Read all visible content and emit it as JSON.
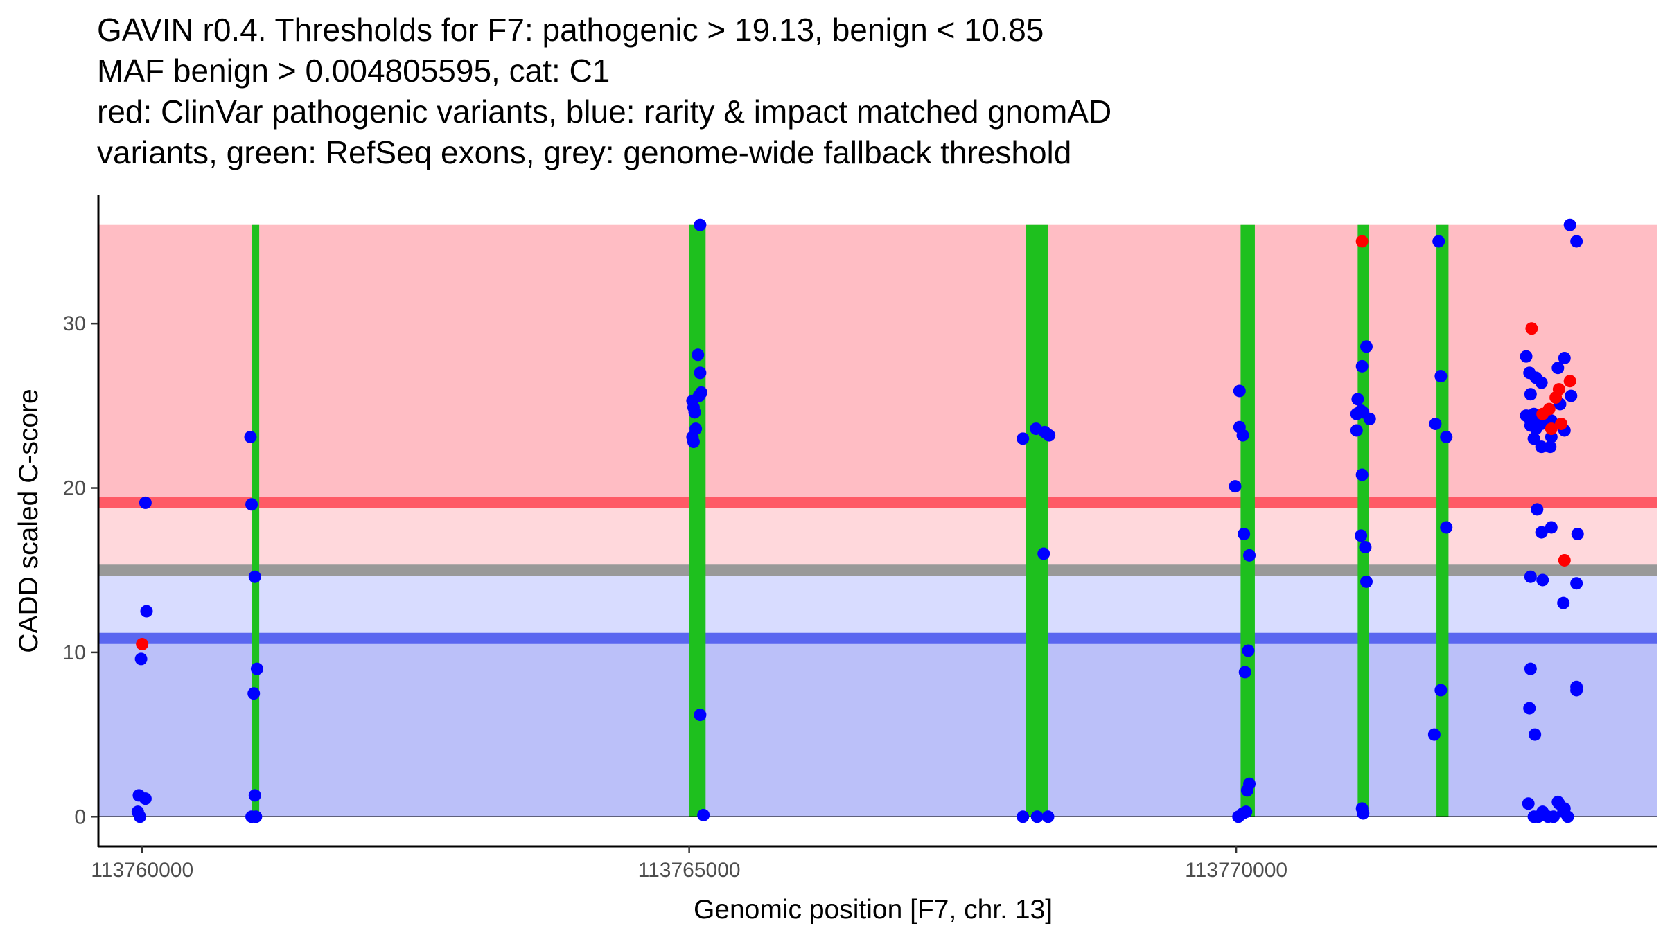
{
  "title_lines": [
    "GAVIN r0.4. Thresholds for F7: pathogenic > 19.13, benign < 10.85",
    "MAF benign > 0.004805595, cat: C1",
    "red: ClinVar pathogenic variants, blue: rarity & impact matched gnomAD",
    "variants, green: RefSeq exons, grey: genome-wide fallback threshold"
  ],
  "chart_data": {
    "type": "scatter",
    "xlabel": "Genomic position [F7, chr. 13]",
    "ylabel": "CADD scaled C-score",
    "xlim": [
      113759600,
      113773850
    ],
    "ylim": [
      -1.8,
      37.8
    ],
    "x_ticks": [
      113760000,
      113765000,
      113770000
    ],
    "x_tick_labels": [
      "113760000",
      "113765000",
      "113770000"
    ],
    "y_ticks": [
      0,
      10,
      20,
      30
    ],
    "y_tick_labels": [
      "0",
      "10",
      "20",
      "30"
    ],
    "thresholds": {
      "pathogenic": 19.13,
      "benign": 10.85,
      "fallback_low": 14.7,
      "fallback_high": 15.3,
      "max": 36,
      "min": 0
    },
    "regions": [
      {
        "name": "pathogenic-region",
        "y0": 19.13,
        "y1": 36,
        "color": "#ffbdc4"
      },
      {
        "name": "fallback-pathogenic-region",
        "y0": 15.3,
        "y1": 19.13,
        "color": "#ffd8dc"
      },
      {
        "name": "fallback-benign-region",
        "y0": 10.85,
        "y1": 14.7,
        "color": "#d8dcff"
      },
      {
        "name": "benign-region",
        "y0": 0,
        "y1": 10.85,
        "color": "#bbc0f9"
      }
    ],
    "threshold_lines": [
      {
        "name": "pathogenic-threshold-line",
        "y": 19.13,
        "color": "#ff5a66"
      },
      {
        "name": "fallback-threshold-line",
        "y": 15.0,
        "color": "#999999"
      },
      {
        "name": "benign-threshold-line",
        "y": 10.85,
        "color": "#5a66f0"
      }
    ],
    "exons": [
      {
        "start": 113761000,
        "end": 113761070
      },
      {
        "start": 113765000,
        "end": 113765150
      },
      {
        "start": 113768080,
        "end": 113768280
      },
      {
        "start": 113770040,
        "end": 113770170
      },
      {
        "start": 113771110,
        "end": 113771210
      },
      {
        "start": 113771830,
        "end": 113771940
      }
    ],
    "series": [
      {
        "name": "gnomAD",
        "color": "#0000ff",
        "points": [
          [
            113760030,
            19.1
          ],
          [
            113760040,
            12.5
          ],
          [
            113759990,
            9.6
          ],
          [
            113759970,
            1.3
          ],
          [
            113760030,
            1.1
          ],
          [
            113759960,
            0.3
          ],
          [
            113759980,
            0.0
          ],
          [
            113760990,
            23.1
          ],
          [
            113761000,
            19.0
          ],
          [
            113761030,
            14.6
          ],
          [
            113761050,
            9.0
          ],
          [
            113761020,
            7.5
          ],
          [
            113761030,
            1.3
          ],
          [
            113761000,
            0.0
          ],
          [
            113761040,
            0.0
          ],
          [
            113765100,
            36.0
          ],
          [
            113765080,
            28.1
          ],
          [
            113765100,
            27.0
          ],
          [
            113765030,
            25.3
          ],
          [
            113765110,
            25.8
          ],
          [
            113765090,
            25.6
          ],
          [
            113765050,
            24.6
          ],
          [
            113765040,
            24.9
          ],
          [
            113765060,
            23.6
          ],
          [
            113765030,
            23.1
          ],
          [
            113765040,
            22.8
          ],
          [
            113765100,
            6.2
          ],
          [
            113765130,
            0.1
          ],
          [
            113768050,
            23.0
          ],
          [
            113768170,
            23.6
          ],
          [
            113768250,
            23.4
          ],
          [
            113768290,
            23.2
          ],
          [
            113768240,
            16.0
          ],
          [
            113768050,
            0.0
          ],
          [
            113768180,
            0.0
          ],
          [
            113768280,
            0.0
          ],
          [
            113770030,
            25.9
          ],
          [
            113770030,
            23.7
          ],
          [
            113770060,
            23.2
          ],
          [
            113769990,
            20.1
          ],
          [
            113770070,
            17.2
          ],
          [
            113770120,
            15.9
          ],
          [
            113770110,
            10.1
          ],
          [
            113770080,
            8.8
          ],
          [
            113770120,
            2.0
          ],
          [
            113770100,
            1.6
          ],
          [
            113770090,
            0.3
          ],
          [
            113770020,
            0.0
          ],
          [
            113770060,
            0.2
          ],
          [
            113771150,
            27.4
          ],
          [
            113771190,
            28.6
          ],
          [
            113771110,
            25.4
          ],
          [
            113771100,
            24.5
          ],
          [
            113771140,
            24.7
          ],
          [
            113771160,
            24.6
          ],
          [
            113771220,
            24.2
          ],
          [
            113771100,
            23.5
          ],
          [
            113771150,
            20.8
          ],
          [
            113771140,
            17.1
          ],
          [
            113771180,
            16.4
          ],
          [
            113771190,
            14.3
          ],
          [
            113771150,
            0.5
          ],
          [
            113771160,
            0.2
          ],
          [
            113771850,
            35.0
          ],
          [
            113771870,
            26.8
          ],
          [
            113771820,
            23.9
          ],
          [
            113771920,
            23.1
          ],
          [
            113771920,
            17.6
          ],
          [
            113771810,
            5.0
          ],
          [
            113771870,
            7.7
          ],
          [
            113772650,
            28.0
          ],
          [
            113772690,
            25.7
          ],
          [
            113772680,
            27.0
          ],
          [
            113772740,
            26.7
          ],
          [
            113772790,
            26.4
          ],
          [
            113772940,
            27.3
          ],
          [
            113773000,
            27.9
          ],
          [
            113773060,
            25.6
          ],
          [
            113772650,
            24.4
          ],
          [
            113772680,
            24.2
          ],
          [
            113772720,
            24.5
          ],
          [
            113772750,
            24.0
          ],
          [
            113772790,
            23.9
          ],
          [
            113772690,
            23.8
          ],
          [
            113772740,
            23.6
          ],
          [
            113772880,
            24.1
          ],
          [
            113772960,
            25.1
          ],
          [
            113773000,
            23.5
          ],
          [
            113772720,
            23.0
          ],
          [
            113772790,
            22.5
          ],
          [
            113772870,
            22.5
          ],
          [
            113772880,
            23.1
          ],
          [
            113772750,
            18.7
          ],
          [
            113772880,
            17.6
          ],
          [
            113772790,
            17.3
          ],
          [
            113773120,
            17.2
          ],
          [
            113772690,
            14.6
          ],
          [
            113772800,
            14.4
          ],
          [
            113773110,
            14.2
          ],
          [
            113772990,
            13.0
          ],
          [
            113772690,
            9.0
          ],
          [
            113772680,
            6.6
          ],
          [
            113772730,
            5.0
          ],
          [
            113773110,
            7.9
          ],
          [
            113773110,
            7.7
          ],
          [
            113773050,
            36.0
          ],
          [
            113773110,
            35.0
          ],
          [
            113772670,
            0.8
          ],
          [
            113772720,
            0.0
          ],
          [
            113772760,
            0.0
          ],
          [
            113772800,
            0.3
          ],
          [
            113772850,
            0.0
          ],
          [
            113772900,
            0.0
          ],
          [
            113772950,
            0.8
          ],
          [
            113772990,
            0.3
          ],
          [
            113773030,
            0.0
          ],
          [
            113772940,
            0.9
          ],
          [
            113773000,
            0.5
          ]
        ]
      },
      {
        "name": "ClinVar pathogenic",
        "color": "#ff0000",
        "points": [
          [
            113760000,
            10.5
          ],
          [
            113771150,
            35.0
          ],
          [
            113772700,
            29.7
          ],
          [
            113772800,
            24.5
          ],
          [
            113772860,
            24.8
          ],
          [
            113772920,
            25.5
          ],
          [
            113772950,
            26.0
          ],
          [
            113772970,
            23.9
          ],
          [
            113773050,
            26.5
          ],
          [
            113772880,
            23.6
          ],
          [
            113773000,
            15.6
          ]
        ]
      }
    ]
  }
}
